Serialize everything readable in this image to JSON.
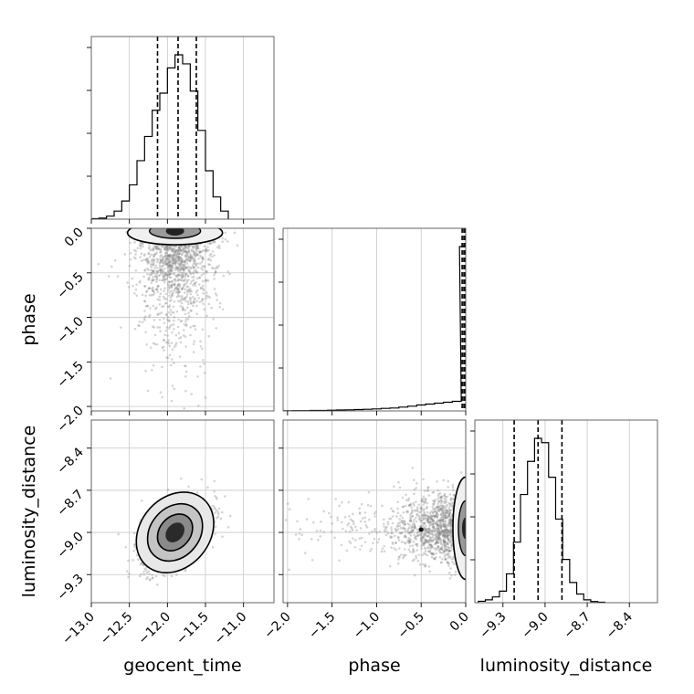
{
  "chart_data": {
    "type": "corner",
    "parameters": [
      "geocent_time",
      "phase",
      "luminosity_distance"
    ],
    "ranges": {
      "geocent_time": [
        -13.0,
        -10.6
      ],
      "phase": [
        -2.05,
        0.0
      ],
      "luminosity_distance": [
        -9.5,
        -8.2
      ]
    },
    "ticks": {
      "geocent_time": [
        {
          "value": -13.0,
          "label": "−13.0"
        },
        {
          "value": -12.5,
          "label": "−12.5"
        },
        {
          "value": -12.0,
          "label": "−12.0"
        },
        {
          "value": -11.5,
          "label": "−11.5"
        },
        {
          "value": -11.0,
          "label": "−11.0"
        }
      ],
      "phase": [
        {
          "value": -2.0,
          "label": "−2.0"
        },
        {
          "value": -1.5,
          "label": "−1.5"
        },
        {
          "value": -1.0,
          "label": "−1.0"
        },
        {
          "value": -0.5,
          "label": "−0.5"
        },
        {
          "value": 0.0,
          "label": "0.0"
        }
      ],
      "luminosity_distance": [
        {
          "value": -9.3,
          "label": "−9.3"
        },
        {
          "value": -9.0,
          "label": "−9.0"
        },
        {
          "value": -8.7,
          "label": "−8.7"
        },
        {
          "value": -8.4,
          "label": "−8.4"
        }
      ]
    },
    "grid": true,
    "quantiles": {
      "geocent_time": [
        -12.13,
        -11.86,
        -11.62
      ],
      "phase": [
        -0.04,
        -0.02,
        -0.005
      ],
      "luminosity_distance": [
        -9.22,
        -9.05,
        -8.88
      ]
    },
    "histograms": {
      "geocent_time": {
        "bins": [
          -12.95,
          -12.85,
          -12.75,
          -12.65,
          -12.55,
          -12.45,
          -12.35,
          -12.25,
          -12.15,
          -12.05,
          -11.95,
          -11.85,
          -11.75,
          -11.65,
          -11.55,
          -11.45,
          -11.35,
          -11.25
        ],
        "counts": [
          0.5,
          1,
          3,
          8,
          18,
          34,
          58,
          82,
          108,
          125,
          150,
          163,
          154,
          127,
          88,
          48,
          22,
          8
        ]
      },
      "phase": {
        "bins": [
          -2.0,
          -1.9,
          -1.8,
          -1.7,
          -1.6,
          -1.5,
          -1.4,
          -1.3,
          -1.2,
          -1.1,
          -1.0,
          -0.9,
          -0.8,
          -0.7,
          -0.6,
          -0.5,
          -0.4,
          -0.3,
          -0.2,
          -0.1,
          -0.02
        ],
        "counts": [
          0.2,
          0.3,
          0.3,
          0.5,
          0.5,
          0.8,
          1,
          1.2,
          1.5,
          1.8,
          2.2,
          2.8,
          3.2,
          4.2,
          5.2,
          6.5,
          7.5,
          8.5,
          9.5,
          10.5,
          180
        ]
      },
      "luminosity_distance": {
        "bins": [
          -9.45,
          -9.4,
          -9.35,
          -9.3,
          -9.25,
          -9.2,
          -9.15,
          -9.1,
          -9.05,
          -9.0,
          -8.95,
          -8.9,
          -8.85,
          -8.8,
          -8.75,
          -8.7,
          -8.65,
          -8.6
        ],
        "counts": [
          1,
          2,
          4,
          8,
          20,
          42,
          75,
          98,
          114,
          111,
          87,
          58,
          30,
          14,
          6,
          2,
          0.8,
          0.3
        ]
      }
    },
    "joint": {
      "geocent_time_vs_phase": {
        "mode": [
          -11.9,
          -0.03
        ],
        "spread": [
          0.25,
          0.45
        ]
      },
      "geocent_time_vs_luminosity_distance": {
        "mode": [
          -11.9,
          -9.0
        ],
        "spread": [
          0.22,
          0.12
        ],
        "correlation": 0.55
      },
      "phase_vs_luminosity_distance": {
        "mode": [
          -0.02,
          -8.97
        ],
        "spread": [
          0.35,
          0.12
        ]
      }
    }
  }
}
